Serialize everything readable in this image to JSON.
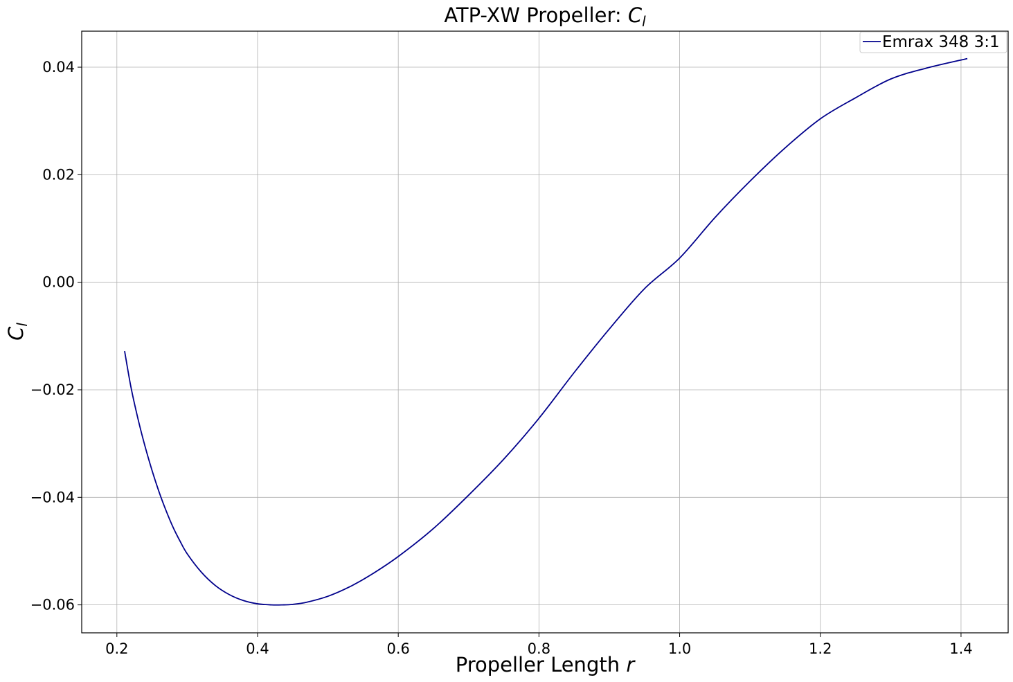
{
  "chart_data": {
    "type": "line",
    "title": "ATP-XW Propeller: ",
    "title_symbol": "C",
    "title_symbol_sub": "l",
    "xlabel": "Propeller Length ",
    "xlabel_symbol": "r",
    "ylabel_symbol": "C",
    "ylabel_symbol_sub": "l",
    "xlim": [
      0.15,
      1.467
    ],
    "ylim": [
      -0.0652,
      0.0467
    ],
    "grid": true,
    "legend_position": "top-right",
    "x_ticks": [
      0.2,
      0.4,
      0.6,
      0.8,
      1.0,
      1.2,
      1.4
    ],
    "x_tick_labels": [
      "0.2",
      "0.4",
      "0.6",
      "0.8",
      "1.0",
      "1.2",
      "1.4"
    ],
    "y_ticks": [
      0.04,
      0.02,
      0.0,
      -0.02,
      -0.04,
      -0.06
    ],
    "y_tick_labels": [
      "0.04",
      "0.02",
      "0.00",
      "−0.02",
      "−0.04",
      "−0.06"
    ],
    "series": [
      {
        "name": "Emrax 348 3:1",
        "color": "#00008b",
        "x": [
          0.211,
          0.22,
          0.23,
          0.24,
          0.25,
          0.26,
          0.27,
          0.28,
          0.29,
          0.3,
          0.32,
          0.34,
          0.36,
          0.38,
          0.4,
          0.42,
          0.435,
          0.45,
          0.47,
          0.5,
          0.53,
          0.56,
          0.6,
          0.65,
          0.7,
          0.75,
          0.8,
          0.85,
          0.9,
          0.95,
          1.0,
          1.05,
          1.1,
          1.15,
          1.2,
          1.25,
          1.3,
          1.35,
          1.409
        ],
        "y": [
          -0.0128,
          -0.0195,
          -0.0254,
          -0.0305,
          -0.035,
          -0.039,
          -0.0425,
          -0.0456,
          -0.0482,
          -0.0505,
          -0.0539,
          -0.0564,
          -0.0581,
          -0.0592,
          -0.0598,
          -0.06,
          -0.06,
          -0.0599,
          -0.0595,
          -0.0584,
          -0.0567,
          -0.0545,
          -0.051,
          -0.0458,
          -0.0396,
          -0.0329,
          -0.0253,
          -0.0168,
          -0.0087,
          -0.0012,
          0.0045,
          0.012,
          0.0188,
          0.025,
          0.0304,
          0.0343,
          0.0378,
          0.0398,
          0.0416
        ]
      }
    ]
  }
}
